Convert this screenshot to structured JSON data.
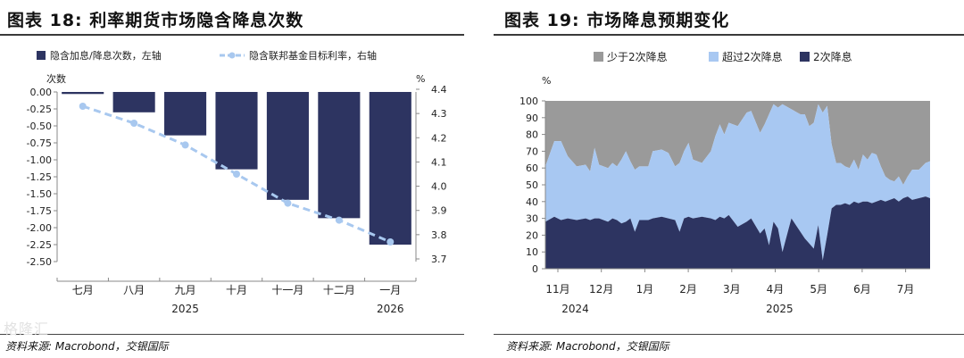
{
  "left_panel": {
    "title": "图表 18: 利率期货市场隐含降息次数",
    "source": "资料来源: Macrobond，交银国际",
    "legend_bar": "隐含加息/降息次数，左轴",
    "legend_line": "隐含联邦基金目标利率，右轴",
    "left_unit": "次数",
    "right_unit": "%",
    "year_labels": [
      {
        "text": "2025",
        "at": 2
      },
      {
        "text": "2026",
        "at": 6
      }
    ],
    "colors": {
      "bar": "#2d3461",
      "line": "#a8c8ef"
    }
  },
  "right_panel": {
    "title": "图表 19: 市场降息预期变化",
    "source": "资料来源: Macrobond，交银国际",
    "y_unit": "%",
    "year_labels": [
      {
        "text": "2024",
        "at": 0.4
      },
      {
        "text": "2025",
        "at": 5.1
      }
    ],
    "colors": {
      "less": "#9a9a9a",
      "more": "#a8c8f2",
      "two": "#2d3461"
    }
  },
  "watermark": "格隆汇",
  "chart_data": [
    {
      "type": "bar",
      "title": "图表 18: 利率期货市场隐含降息次数",
      "categories": [
        "七月",
        "八月",
        "九月",
        "十月",
        "十一月",
        "十二月",
        "一月"
      ],
      "series": [
        {
          "name": "隐含加息/降息次数，左轴",
          "axis": "left",
          "type": "bar",
          "values": [
            -0.03,
            -0.3,
            -0.64,
            -1.14,
            -1.59,
            -1.86,
            -2.25
          ]
        },
        {
          "name": "隐含联邦基金目标利率，右轴",
          "axis": "right",
          "type": "line",
          "values": [
            4.33,
            4.26,
            4.17,
            4.05,
            3.93,
            3.86,
            3.77
          ]
        }
      ],
      "y_left": {
        "min": -2.5,
        "max": 0,
        "step": 0.25
      },
      "y_right": {
        "min": 3.7,
        "max": 4.4,
        "step": 0.1
      },
      "legend_position": "top"
    },
    {
      "type": "area",
      "title": "图表 19: 市场降息预期变化",
      "x_ticks": [
        "11月",
        "12月",
        "1月",
        "2月",
        "3月",
        "4月",
        "5月",
        "6月",
        "7月"
      ],
      "x": [
        0,
        0.2,
        0.35,
        0.5,
        0.7,
        0.9,
        1.0,
        1.1,
        1.2,
        1.4,
        1.5,
        1.6,
        1.7,
        1.8,
        1.9,
        2.0,
        2.1,
        2.3,
        2.4,
        2.6,
        2.75,
        2.9,
        3.0,
        3.1,
        3.2,
        3.3,
        3.5,
        3.7,
        3.8,
        3.9,
        4.0,
        4.1,
        4.3,
        4.5,
        4.6,
        4.8,
        4.9,
        5.0,
        5.1,
        5.2,
        5.3,
        5.5,
        5.7,
        5.8,
        5.9,
        6.0,
        6.1,
        6.2,
        6.3,
        6.4,
        6.5,
        6.6,
        6.7,
        6.8,
        6.9,
        7.0,
        7.1,
        7.2,
        7.3,
        7.4,
        7.5,
        7.6,
        7.7,
        7.8,
        7.9,
        8.0,
        8.1,
        8.2,
        8.35,
        8.5,
        8.6
      ],
      "series": [
        {
          "name": "2次降息",
          "values": [
            28,
            31,
            29,
            30,
            29,
            30,
            29,
            30,
            30,
            28,
            30,
            29,
            27,
            28,
            30,
            22,
            29,
            29,
            30,
            31,
            30,
            29,
            22,
            30,
            31,
            30,
            31,
            30,
            29,
            31,
            30,
            32,
            25,
            28,
            30,
            21,
            24,
            14,
            28,
            24,
            10,
            30,
            22,
            18,
            15,
            12,
            26,
            5,
            20,
            36,
            38,
            38,
            39,
            38,
            40,
            39,
            40,
            40,
            39,
            40,
            41,
            40,
            41,
            42,
            40,
            42,
            43,
            41,
            42,
            43,
            42
          ]
        },
        {
          "name": "超过2次降息",
          "values": [
            33,
            45,
            47,
            37,
            32,
            32,
            29,
            42,
            32,
            32,
            33,
            32,
            38,
            42,
            34,
            37,
            32,
            32,
            40,
            40,
            39,
            32,
            41,
            40,
            44,
            35,
            32,
            40,
            50,
            55,
            50,
            55,
            60,
            65,
            64,
            60,
            62,
            78,
            70,
            72,
            88,
            65,
            70,
            74,
            70,
            75,
            72,
            88,
            77,
            38,
            25,
            25,
            22,
            22,
            25,
            20,
            28,
            25,
            30,
            28,
            20,
            15,
            12,
            10,
            15,
            8,
            12,
            18,
            17,
            20,
            22
          ]
        },
        {
          "name": "少于2次降息",
          "values": [
            39,
            24,
            24,
            33,
            39,
            38,
            42,
            28,
            38,
            40,
            37,
            39,
            35,
            30,
            36,
            41,
            39,
            39,
            30,
            29,
            31,
            39,
            37,
            30,
            25,
            35,
            37,
            30,
            21,
            14,
            20,
            13,
            15,
            7,
            6,
            19,
            14,
            8,
            2,
            4,
            2,
            5,
            8,
            8,
            15,
            13,
            2,
            7,
            3,
            26,
            37,
            37,
            39,
            40,
            35,
            41,
            32,
            35,
            31,
            32,
            39,
            45,
            47,
            48,
            45,
            50,
            45,
            41,
            41,
            37,
            36
          ]
        }
      ],
      "ylim": [
        0,
        100
      ],
      "y_step": 10,
      "legend_position": "top",
      "stacked": true
    }
  ]
}
